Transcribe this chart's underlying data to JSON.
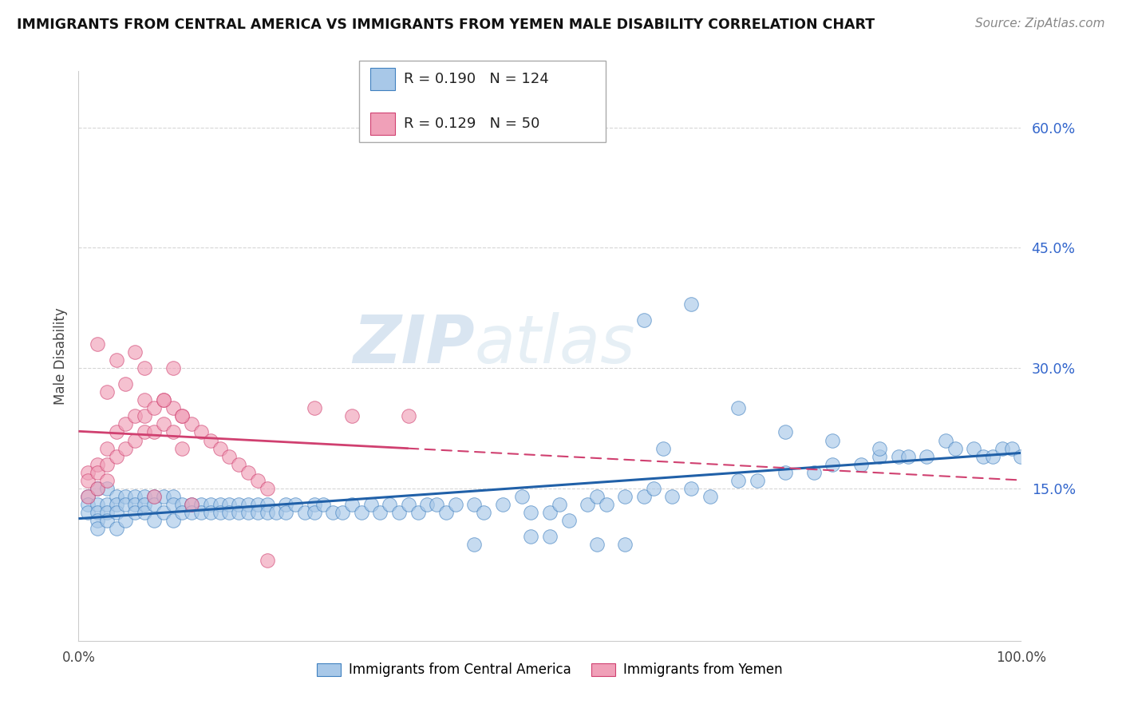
{
  "title": "IMMIGRANTS FROM CENTRAL AMERICA VS IMMIGRANTS FROM YEMEN MALE DISABILITY CORRELATION CHART",
  "source": "Source: ZipAtlas.com",
  "ylabel": "Male Disability",
  "xmin": 0.0,
  "xmax": 1.0,
  "ymin": -0.04,
  "ymax": 0.67,
  "yticks": [
    0.15,
    0.3,
    0.45,
    0.6
  ],
  "ytick_labels": [
    "15.0%",
    "30.0%",
    "45.0%",
    "60.0%"
  ],
  "xtick_positions": [
    0.0,
    1.0
  ],
  "xtick_labels": [
    "0.0%",
    "100.0%"
  ],
  "legend_labels": [
    "Immigrants from Central America",
    "Immigrants from Yemen"
  ],
  "R_blue": 0.19,
  "N_blue": 124,
  "R_pink": 0.129,
  "N_pink": 50,
  "color_blue": "#a8c8e8",
  "color_pink": "#f0a0b8",
  "edge_blue": "#4080c0",
  "edge_pink": "#d04070",
  "line_blue": "#2060a8",
  "line_pink_solid": "#d04070",
  "line_pink_dash": "#d04070",
  "background_color": "#ffffff",
  "grid_color": "#cccccc",
  "watermark_text": "ZIPatlas",
  "blue_x": [
    0.01,
    0.01,
    0.01,
    0.02,
    0.02,
    0.02,
    0.02,
    0.02,
    0.03,
    0.03,
    0.03,
    0.03,
    0.04,
    0.04,
    0.04,
    0.04,
    0.05,
    0.05,
    0.05,
    0.06,
    0.06,
    0.06,
    0.07,
    0.07,
    0.07,
    0.08,
    0.08,
    0.08,
    0.09,
    0.09,
    0.1,
    0.1,
    0.1,
    0.11,
    0.11,
    0.12,
    0.12,
    0.13,
    0.13,
    0.14,
    0.14,
    0.15,
    0.15,
    0.16,
    0.16,
    0.17,
    0.17,
    0.18,
    0.18,
    0.19,
    0.19,
    0.2,
    0.2,
    0.21,
    0.22,
    0.22,
    0.23,
    0.24,
    0.25,
    0.25,
    0.26,
    0.27,
    0.28,
    0.29,
    0.3,
    0.31,
    0.32,
    0.33,
    0.34,
    0.35,
    0.36,
    0.37,
    0.38,
    0.39,
    0.4,
    0.42,
    0.43,
    0.45,
    0.47,
    0.48,
    0.5,
    0.51,
    0.52,
    0.54,
    0.55,
    0.56,
    0.58,
    0.6,
    0.61,
    0.63,
    0.65,
    0.67,
    0.7,
    0.72,
    0.75,
    0.78,
    0.8,
    0.83,
    0.85,
    0.87,
    0.6,
    0.65,
    0.7,
    0.75,
    0.8,
    0.85,
    0.88,
    0.9,
    0.92,
    0.93,
    0.95,
    0.96,
    0.97,
    0.98,
    0.99,
    1.0,
    0.5,
    0.55,
    0.42,
    0.48,
    0.58,
    0.62
  ],
  "blue_y": [
    0.14,
    0.13,
    0.12,
    0.15,
    0.13,
    0.12,
    0.11,
    0.1,
    0.15,
    0.13,
    0.12,
    0.11,
    0.14,
    0.13,
    0.12,
    0.1,
    0.14,
    0.13,
    0.11,
    0.14,
    0.13,
    0.12,
    0.14,
    0.13,
    0.12,
    0.14,
    0.13,
    0.11,
    0.14,
    0.12,
    0.14,
    0.13,
    0.11,
    0.13,
    0.12,
    0.13,
    0.12,
    0.13,
    0.12,
    0.13,
    0.12,
    0.13,
    0.12,
    0.13,
    0.12,
    0.13,
    0.12,
    0.13,
    0.12,
    0.13,
    0.12,
    0.13,
    0.12,
    0.12,
    0.13,
    0.12,
    0.13,
    0.12,
    0.13,
    0.12,
    0.13,
    0.12,
    0.12,
    0.13,
    0.12,
    0.13,
    0.12,
    0.13,
    0.12,
    0.13,
    0.12,
    0.13,
    0.13,
    0.12,
    0.13,
    0.13,
    0.12,
    0.13,
    0.14,
    0.12,
    0.12,
    0.13,
    0.11,
    0.13,
    0.14,
    0.13,
    0.14,
    0.14,
    0.15,
    0.14,
    0.15,
    0.14,
    0.16,
    0.16,
    0.17,
    0.17,
    0.18,
    0.18,
    0.19,
    0.19,
    0.36,
    0.38,
    0.25,
    0.22,
    0.21,
    0.2,
    0.19,
    0.19,
    0.21,
    0.2,
    0.2,
    0.19,
    0.19,
    0.2,
    0.2,
    0.19,
    0.09,
    0.08,
    0.08,
    0.09,
    0.08,
    0.2
  ],
  "pink_x": [
    0.01,
    0.01,
    0.01,
    0.02,
    0.02,
    0.02,
    0.03,
    0.03,
    0.03,
    0.04,
    0.04,
    0.05,
    0.05,
    0.06,
    0.06,
    0.07,
    0.07,
    0.07,
    0.08,
    0.08,
    0.09,
    0.09,
    0.1,
    0.1,
    0.11,
    0.11,
    0.12,
    0.13,
    0.14,
    0.15,
    0.16,
    0.17,
    0.18,
    0.19,
    0.2,
    0.03,
    0.05,
    0.07,
    0.09,
    0.11,
    0.25,
    0.29,
    0.08,
    0.12,
    0.35,
    0.02,
    0.04,
    0.06,
    0.1,
    0.2
  ],
  "pink_y": [
    0.17,
    0.16,
    0.14,
    0.18,
    0.17,
    0.15,
    0.2,
    0.18,
    0.16,
    0.22,
    0.19,
    0.23,
    0.2,
    0.24,
    0.21,
    0.26,
    0.24,
    0.22,
    0.25,
    0.22,
    0.26,
    0.23,
    0.25,
    0.22,
    0.24,
    0.2,
    0.23,
    0.22,
    0.21,
    0.2,
    0.19,
    0.18,
    0.17,
    0.16,
    0.15,
    0.27,
    0.28,
    0.3,
    0.26,
    0.24,
    0.25,
    0.24,
    0.14,
    0.13,
    0.24,
    0.33,
    0.31,
    0.32,
    0.3,
    0.06
  ]
}
